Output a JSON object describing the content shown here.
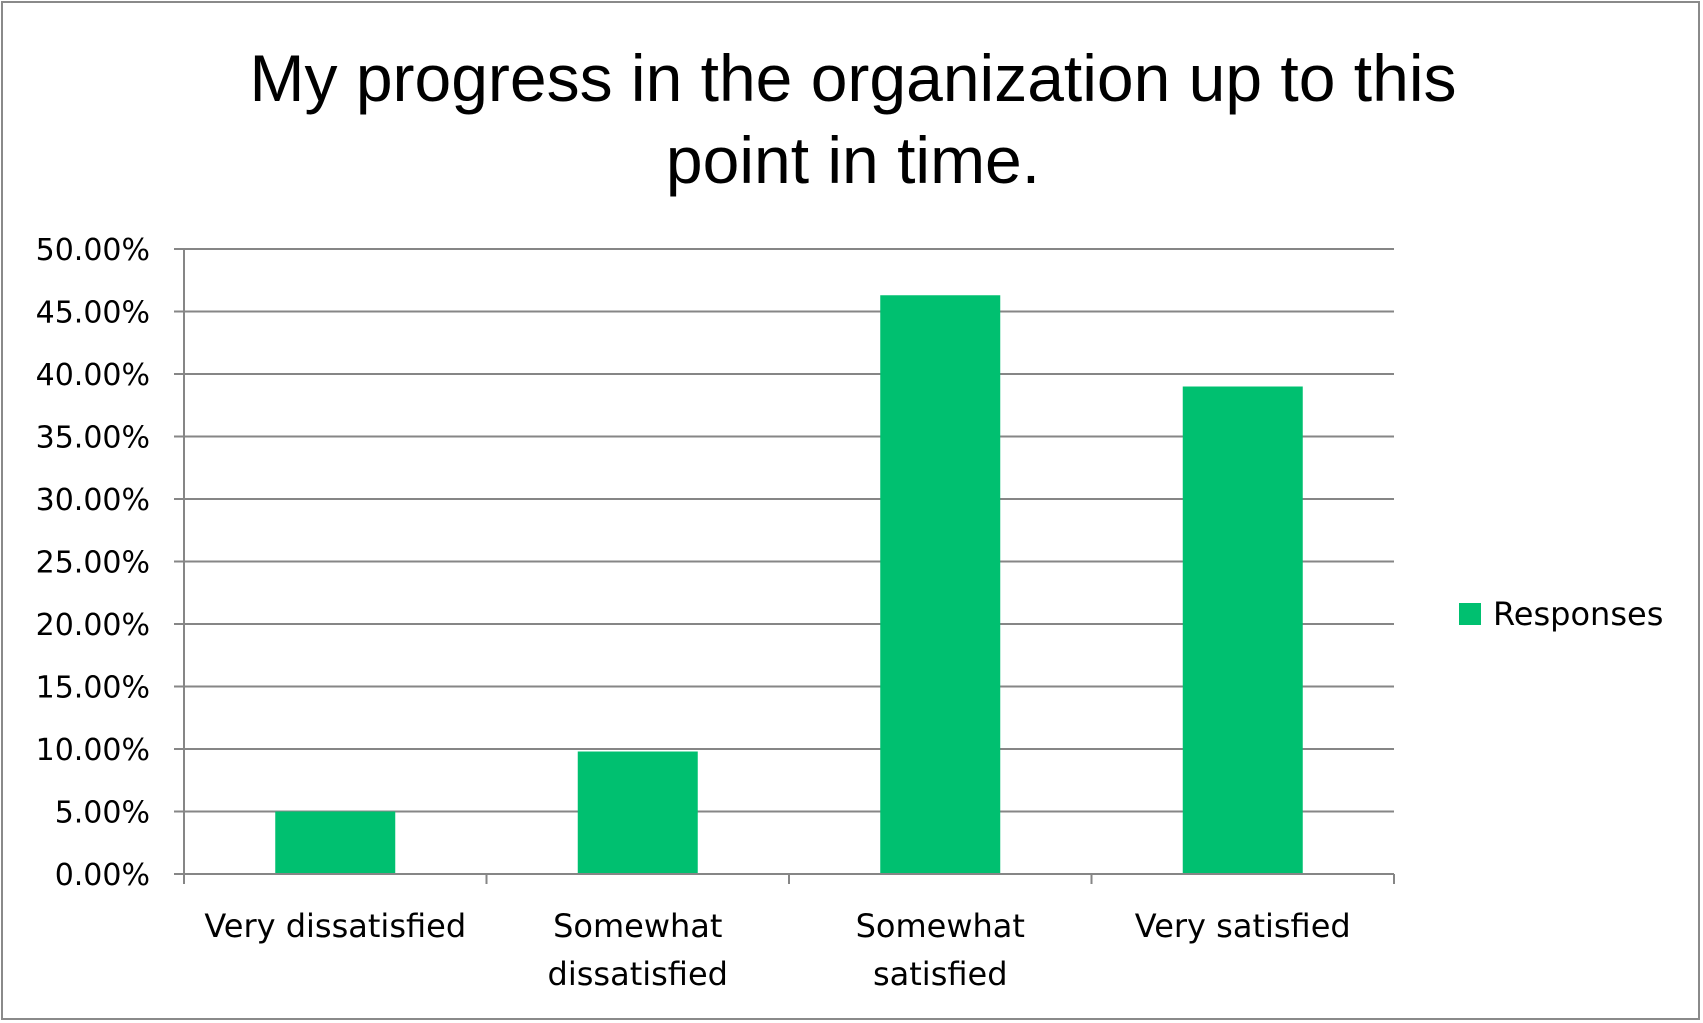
{
  "chart_data": {
    "type": "bar",
    "title": "My progress in the organization up to this point in time.",
    "title_lines": [
      "My progress in the organization up to this",
      "point in time."
    ],
    "categories": [
      "Very dissatisfied",
      "Somewhat dissatisfied",
      "Somewhat satisfied",
      "Very satisfied"
    ],
    "category_lines": [
      [
        "Very dissatisfied"
      ],
      [
        "Somewhat",
        "dissatisfied"
      ],
      [
        "Somewhat",
        "satisfied"
      ],
      [
        "Very satisfied"
      ]
    ],
    "series": [
      {
        "name": "Responses",
        "values": [
          0.05,
          0.098,
          0.463,
          0.39
        ],
        "color": "#00c070"
      }
    ],
    "xlabel": "",
    "ylabel": "",
    "ylim": [
      0,
      0.5
    ],
    "ytick_step": 0.05,
    "ytick_labels": [
      "0.00%",
      "5.00%",
      "10.00%",
      "15.00%",
      "20.00%",
      "25.00%",
      "30.00%",
      "35.00%",
      "40.00%",
      "45.00%",
      "50.00%"
    ],
    "grid": true,
    "legend": "right",
    "gridline_color": "#868686",
    "axis_color": "#868686",
    "frame_color": "#8a8a8a"
  }
}
